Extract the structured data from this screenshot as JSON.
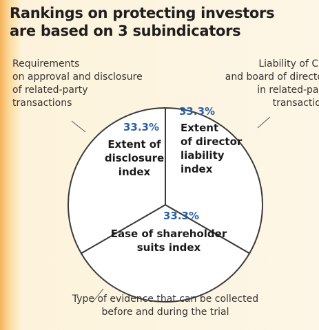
{
  "chart_data": {
    "type": "pie",
    "title": "Rankings on protecting investors\nare based on 3 subindicators",
    "categories": [
      "Extent of\ndisclosure\nindex",
      "Extent\nof director\nliability\nindex",
      "Ease of shareholder\nsuits index"
    ],
    "values": [
      33.3,
      33.3,
      33.3
    ],
    "value_labels": [
      "33.3%",
      "33.3%",
      "33.3%"
    ],
    "descriptions": [
      "Requirements\non approval and disclosure\nof related-party\ntransactions",
      "Liability of CEO\nand board of directors\nin related-party\ntransactions",
      "Type of evidence that can be collected\nbefore and during the trial"
    ],
    "color": "#ffffff"
  }
}
